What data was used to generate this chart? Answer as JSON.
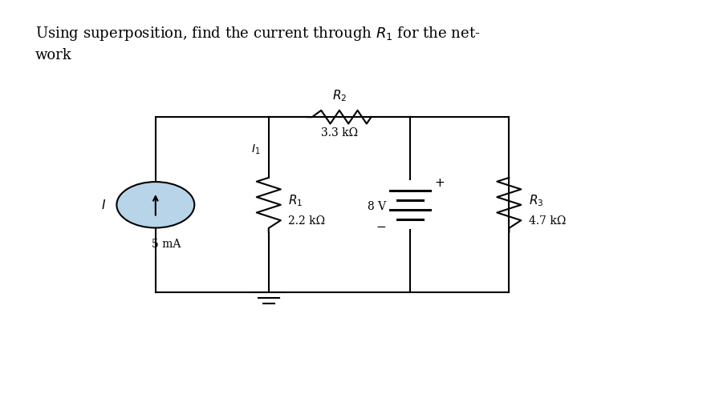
{
  "title_line1": "Using superposition, find the current through $R_1$ for the net-",
  "title_line2": "work",
  "bg_color": "#ffffff",
  "circuit_color": "#000000",
  "current_source_fill": "#b8d4e8",
  "title_fontsize": 13,
  "label_fontsize": 11,
  "small_fontsize": 10,
  "fig_width": 8.81,
  "fig_height": 5.22,
  "dpi": 100,
  "R2_label": "$R_2$",
  "R2_value": "3.3 kΩ",
  "R1_label": "$R_1$",
  "R1_value": "2.2 kΩ",
  "R3_label": "$R_3$",
  "R3_value": "4.7 kΩ",
  "V_value": "8 V",
  "I_label": "$I$",
  "I_value": "5 mA",
  "I1_label": "$I_1$",
  "res_hh": 0.65,
  "res_hw": 0.17
}
